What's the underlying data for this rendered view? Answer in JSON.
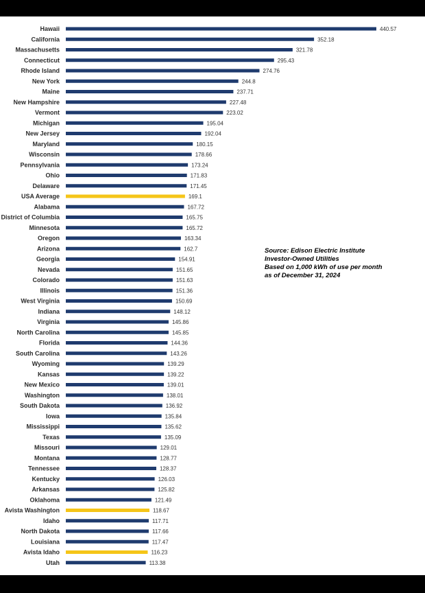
{
  "chart_data": {
    "type": "bar",
    "orientation": "horizontal",
    "colors": {
      "default": "#1f3b6e",
      "highlight": "#f5c518"
    },
    "categories": [
      "Hawaii",
      "California",
      "Massachusetts",
      "Connecticut",
      "Rhode Island",
      "New York",
      "Maine",
      "New Hampshire",
      "Vermont",
      "Michigan",
      "New Jersey",
      "Maryland",
      "Wisconsin",
      "Pennsylvania",
      "Ohio",
      "Delaware",
      "USA Average",
      "Alabama",
      "District of Columbia",
      "Minnesota",
      "Oregon",
      "Arizona",
      "Georgia",
      "Nevada",
      "Colorado",
      "Illinois",
      "West Virginia",
      "Indiana",
      "Virginia",
      "North Carolina",
      "Florida",
      "South Carolina",
      "Wyoming",
      "Kansas",
      "New Mexico",
      "Washington",
      "South Dakota",
      "Iowa",
      "Mississippi",
      "Texas",
      "Missouri",
      "Montana",
      "Tennessee",
      "Kentucky",
      "Arkansas",
      "Oklahoma",
      "Avista Washington",
      "Idaho",
      "North Dakota",
      "Louisiana",
      "Avista Idaho",
      "Utah"
    ],
    "values": [
      440.57,
      352.18,
      321.78,
      295.43,
      274.76,
      244.8,
      237.71,
      227.48,
      223.02,
      195.04,
      192.04,
      180.15,
      178.66,
      173.24,
      171.83,
      171.45,
      169.1,
      167.72,
      165.75,
      165.72,
      163.34,
      162.7,
      154.91,
      151.65,
      151.63,
      151.36,
      150.69,
      148.12,
      145.86,
      145.85,
      144.36,
      143.26,
      139.29,
      139.22,
      139.01,
      138.01,
      136.92,
      135.84,
      135.62,
      135.09,
      129.01,
      128.77,
      128.37,
      126.03,
      125.82,
      121.49,
      118.67,
      117.71,
      117.66,
      117.47,
      116.23,
      113.38
    ],
    "value_labels": [
      "440.57",
      "352.18",
      "321.78",
      "295.43",
      "274.76",
      "244.8",
      "237.71",
      "227.48",
      "223.02",
      "195.04",
      "192.04",
      "180.15",
      "178.66",
      "173.24",
      "171.83",
      "171.45",
      "169.1",
      "167.72",
      "165.75",
      "165.72",
      "163.34",
      "162.7",
      "154.91",
      "151.65",
      "151.63",
      "151.36",
      "150.69",
      "148.12",
      "145.86",
      "145.85",
      "144.36",
      "143.26",
      "139.29",
      "139.22",
      "139.01",
      "138.01",
      "136.92",
      "135.84",
      "135.62",
      "135.09",
      "129.01",
      "128.77",
      "128.37",
      "126.03",
      "125.82",
      "121.49",
      "118.67",
      "117.71",
      "117.66",
      "117.47",
      "116.23",
      "113.38"
    ],
    "highlight": [
      "USA Average",
      "Avista Washington",
      "Avista Idaho"
    ],
    "xlim": [
      0,
      440.57
    ],
    "title": "",
    "xlabel": "",
    "ylabel": "",
    "grid": false,
    "annotation": [
      "Source:  Edison Electric Institute",
      "Investor-Owned Utilities",
      "Based on 1,000 kWh of use per month",
      "as of December 31, 2024"
    ]
  }
}
